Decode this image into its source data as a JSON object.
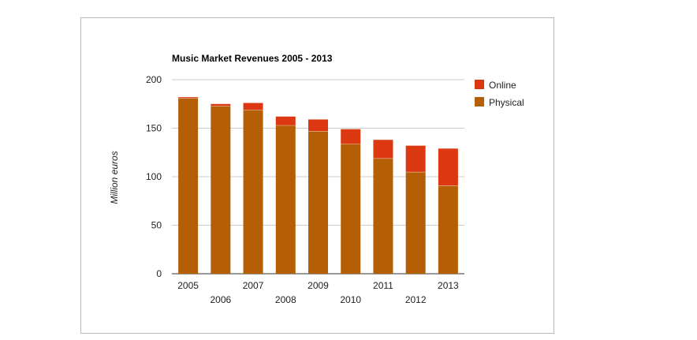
{
  "chart_data": {
    "type": "bar",
    "stacked": true,
    "title": "Music Market Revenues 2005 - 2013",
    "xlabel": "",
    "ylabel": "Million euros",
    "ylim": [
      0,
      200
    ],
    "yticks": [
      0,
      50,
      100,
      150,
      200
    ],
    "categories": [
      "2005",
      "2006",
      "2007",
      "2008",
      "2009",
      "2010",
      "2011",
      "2012",
      "2013"
    ],
    "series": [
      {
        "name": "Physical",
        "color": "#b45f06",
        "values": [
          181,
          173,
          169,
          153,
          147,
          134,
          119,
          105,
          91
        ]
      },
      {
        "name": "Online",
        "color": "#dc3912",
        "values": [
          1,
          2,
          7,
          9,
          12,
          15,
          19,
          27,
          38
        ]
      }
    ],
    "legend": {
      "position": "right",
      "entries": [
        "Online",
        "Physical"
      ]
    },
    "grid": true
  }
}
